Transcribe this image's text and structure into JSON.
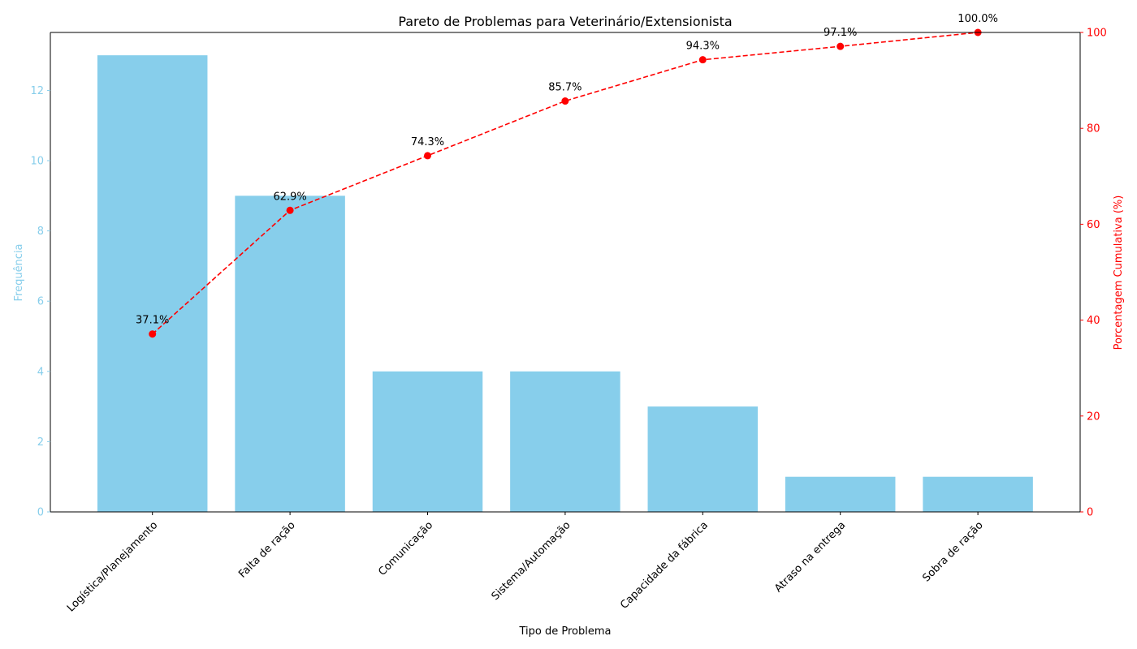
{
  "chart_data": {
    "type": "bar",
    "title": "Pareto de Problemas para Veterinário/Extensionista",
    "xlabel": "Tipo de Problema",
    "ylabel": "Frequência",
    "y2label": "Porcentagem Cumulativa (%)",
    "categories": [
      "Logística/Planejamento",
      "Falta de ração",
      "Comunicação",
      "Sistema/Automação",
      "Capacidade da fábrica",
      "Atraso na entrega",
      "Sobra de ração"
    ],
    "series": [
      {
        "name": "Frequência",
        "type": "bar",
        "axis": "left",
        "values": [
          13,
          9,
          4,
          4,
          3,
          1,
          1
        ]
      },
      {
        "name": "Porcentagem Cumulativa (%)",
        "type": "line",
        "axis": "right",
        "values": [
          37.1,
          62.9,
          74.3,
          85.7,
          94.3,
          97.1,
          100.0
        ]
      }
    ],
    "point_labels": [
      "37.1%",
      "62.9%",
      "74.3%",
      "85.7%",
      "94.3%",
      "97.1%",
      "100.0%"
    ],
    "ylim": [
      0,
      13.65
    ],
    "y2lim": [
      0,
      100
    ],
    "yticks": [
      "0",
      "2",
      "4",
      "6",
      "8",
      "10",
      "12"
    ],
    "y2ticks": [
      "0",
      "20",
      "40",
      "60",
      "80",
      "100"
    ],
    "grid": false,
    "colors": {
      "bar": "#87ceeb",
      "line": "#ff0000",
      "left_axis": "#87ceeb",
      "right_axis": "#ff0000"
    }
  }
}
